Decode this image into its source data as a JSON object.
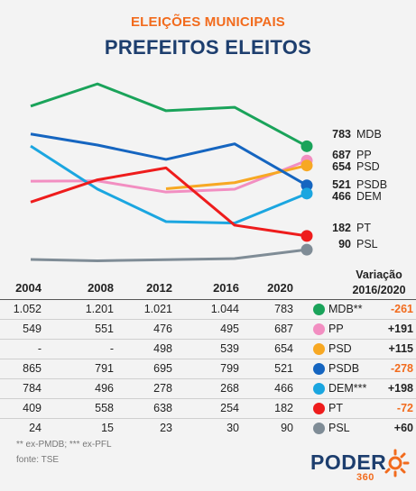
{
  "header": {
    "subtitle": "ELEIÇÕES MUNICIPAIS",
    "title": "PREFEITOS ELEITOS"
  },
  "chart_data": {
    "type": "line",
    "x": [
      "2004",
      "2008",
      "2012",
      "2016",
      "2020"
    ],
    "series": [
      {
        "name": "MDB",
        "values": [
          1052,
          1201,
          1021,
          1044,
          783
        ],
        "color": "#1aa35a",
        "end_label": "783"
      },
      {
        "name": "PP",
        "values": [
          549,
          551,
          476,
          495,
          687
        ],
        "color": "#f28ec1",
        "end_label": "687"
      },
      {
        "name": "PSD",
        "values": [
          null,
          null,
          498,
          539,
          654
        ],
        "color": "#f7a823",
        "end_label": "654"
      },
      {
        "name": "PSDB",
        "values": [
          865,
          791,
          695,
          799,
          521
        ],
        "color": "#1565c0",
        "end_label": "521"
      },
      {
        "name": "DEM",
        "values": [
          784,
          496,
          278,
          268,
          466
        ],
        "color": "#1ba6e0",
        "end_label": "466"
      },
      {
        "name": "PT",
        "values": [
          409,
          558,
          638,
          254,
          182
        ],
        "color": "#ee1c1c",
        "end_label": "182"
      },
      {
        "name": "PSL",
        "values": [
          24,
          15,
          23,
          30,
          90
        ],
        "color": "#7f8c96",
        "end_label": "90"
      }
    ],
    "ylim": [
      0,
      1250
    ]
  },
  "table": {
    "years": [
      "2004",
      "2008",
      "2012",
      "2016",
      "2020"
    ],
    "variation_header_line1": "Variação",
    "variation_header_line2": "2016/2020",
    "rows": [
      {
        "cells": [
          "1.052",
          "1.201",
          "1.021",
          "1.044",
          "783"
        ],
        "party": "MDB**",
        "variation": "-261",
        "color": "#1aa35a",
        "var_color": "#f26b1d"
      },
      {
        "cells": [
          "549",
          "551",
          "476",
          "495",
          "687"
        ],
        "party": "PP",
        "variation": "+191",
        "color": "#f28ec1",
        "var_color": "#222222"
      },
      {
        "cells": [
          "-",
          "-",
          "498",
          "539",
          "654"
        ],
        "party": "PSD",
        "variation": "+115",
        "color": "#f7a823",
        "var_color": "#222222"
      },
      {
        "cells": [
          "865",
          "791",
          "695",
          "799",
          "521"
        ],
        "party": "PSDB",
        "variation": "-278",
        "color": "#1565c0",
        "var_color": "#f26b1d"
      },
      {
        "cells": [
          "784",
          "496",
          "278",
          "268",
          "466"
        ],
        "party": "DEM***",
        "variation": "+198",
        "color": "#1ba6e0",
        "var_color": "#222222"
      },
      {
        "cells": [
          "409",
          "558",
          "638",
          "254",
          "182"
        ],
        "party": "PT",
        "variation": "-72",
        "color": "#ee1c1c",
        "var_color": "#f26b1d"
      },
      {
        "cells": [
          "24",
          "15",
          "23",
          "30",
          "90"
        ],
        "party": "PSL",
        "variation": "+60",
        "color": "#7f8c96",
        "var_color": "#222222"
      }
    ]
  },
  "footer": {
    "note": "** ex-PMDB; *** ex-PFL",
    "source": "fonte: TSE",
    "logo": "PODER",
    "logo_sub": "360"
  }
}
